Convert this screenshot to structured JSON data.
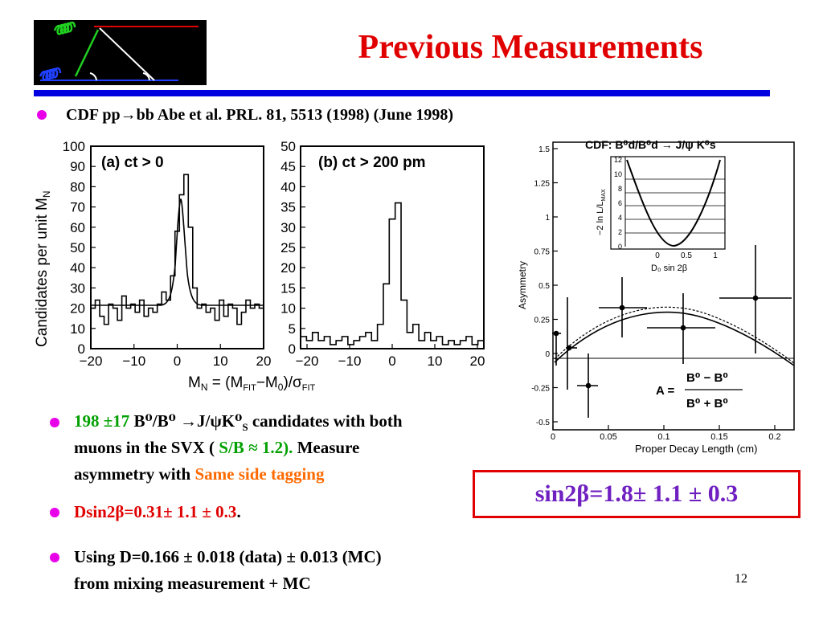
{
  "slide": {
    "title": "Previous Measurements",
    "page_number": "12"
  },
  "bullets": {
    "b1": {
      "prefix": "CDF ",
      "reaction": "pp→bb",
      "rest": " Abe et al. PRL. 81, 5513 (1998) (June 1998)"
    },
    "b2": {
      "count": "198 ±17",
      "channel": " B⁰/B⁰ →J/ψK⁰",
      "channel_sub": "S",
      "tail1": " candidates with both",
      "line2_a": "muons in the SVX ( ",
      "sb": "S/B ≈ 1.2).",
      "line2_b": "   Measure",
      "line3_a": "asymmetry with ",
      "sst": "Same side tagging"
    },
    "b3": {
      "text": "Dsin2β=0.31± 1.1 ± 0.3",
      "period": "."
    },
    "b4": {
      "line1": "Using D=0.166 ± 0.018 (data) ± 0.013 (MC)",
      "line2": "from mixing measurement + MC"
    }
  },
  "result_box": {
    "text": "sin2β=1.8± 1.1 ± 0.3"
  },
  "figure_left": {
    "ylabel": "Candidates per unit M",
    "ylabel_sub": "N",
    "xlabel": "M",
    "xlabel_sub": "N",
    "xlabel_rest": " = (M",
    "xlabel_fit": "FIT",
    "xlabel_mid": "−M",
    "xlabel_zero": "0",
    "xlabel_end": ")/σ",
    "xlabel_sig": "FIT",
    "panel_a_label": "(a)  ct  >  0",
    "panel_b_label": "(b)  ct  >  200  pm",
    "panel_a_yticks": [
      "0",
      "10",
      "20",
      "30",
      "40",
      "50",
      "60",
      "70",
      "80",
      "90",
      "100"
    ],
    "panel_b_yticks": [
      "0",
      "5",
      "10",
      "15",
      "20",
      "25",
      "30",
      "35",
      "40",
      "45",
      "50"
    ],
    "xticks": [
      "−20",
      "−10",
      "0",
      "10",
      "20"
    ]
  },
  "figure_right": {
    "header": "CDF:  B⁰d/B⁰d → J/ψ K⁰s",
    "ylabel": "Asymmetry",
    "xlabel": "Proper Decay  Length  (cm)",
    "yticks": [
      "-0.5",
      "-0.25",
      "0",
      "0.25",
      "0.5",
      "0.75",
      "1",
      "1.25",
      "1.5"
    ],
    "xticks": [
      "0",
      "0.05",
      "0.1",
      "0.15",
      "0.2"
    ],
    "inset_ylabel": "−2 ln L/L",
    "inset_ylabel_sub": "MAX",
    "inset_xlabel": "D₀ sin 2β",
    "inset_yticks": [
      "0",
      "2",
      "4",
      "6",
      "8",
      "10",
      "12"
    ],
    "inset_xticks": [
      "0",
      "0.5",
      "1"
    ],
    "formula_lhs": "A =",
    "formula_num": "B⁰ − B⁰",
    "formula_den": "B⁰ + B⁰"
  }
}
